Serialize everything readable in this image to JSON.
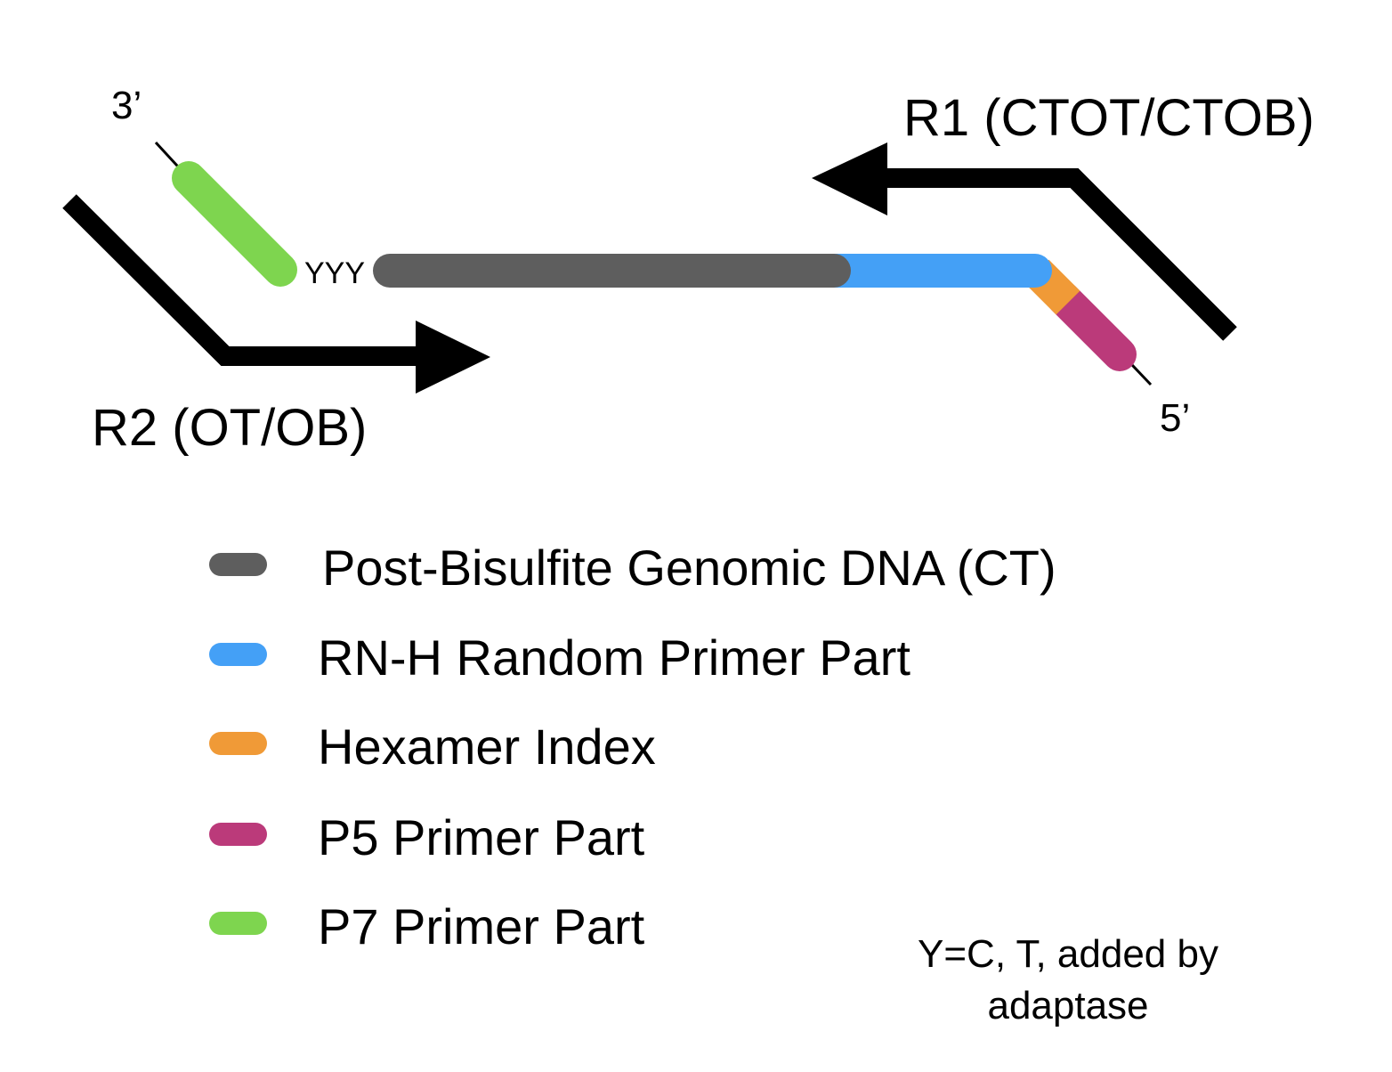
{
  "colors": {
    "genomic": "#5e5e5e",
    "rnh": "#44a0f6",
    "hexamer": "#f09a37",
    "p5": "#bb3a7a",
    "p7": "#7ed54f",
    "arrow": "#000000"
  },
  "diagram": {
    "label_3prime": "3’",
    "label_5prime": "5’",
    "yyy": "YYY",
    "r1_label": "R1 (CTOT/CTOB)",
    "r2_label": "R2 (OT/OB)"
  },
  "legend": [
    {
      "label": "Post-Bisulfite Genomic DNA (CT)",
      "color_key": "genomic"
    },
    {
      "label": "RN-H Random Primer Part",
      "color_key": "rnh"
    },
    {
      "label": "Hexamer Index",
      "color_key": "hexamer"
    },
    {
      "label": "P5 Primer Part",
      "color_key": "p5"
    },
    {
      "label": "P7 Primer Part",
      "color_key": "p7"
    }
  ],
  "note": {
    "line1": "Y=C, T, added by",
    "line2": "adaptase"
  }
}
